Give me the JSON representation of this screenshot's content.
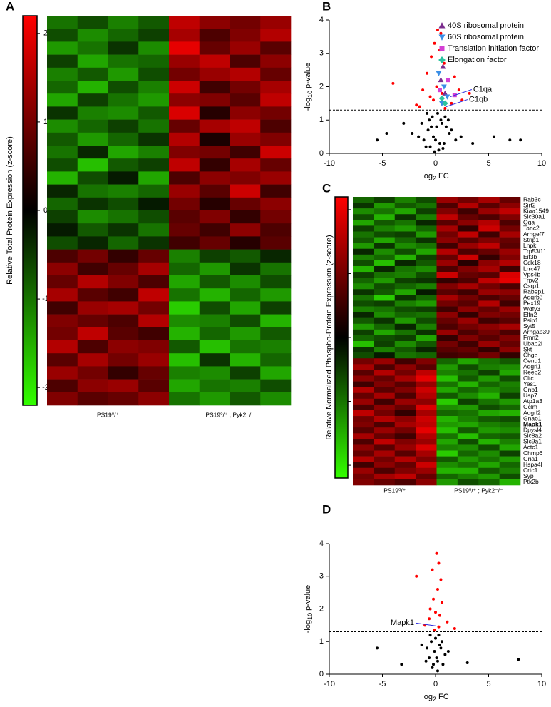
{
  "chart_data": [
    {
      "type": "heatmap",
      "panel": "A",
      "colorbar_label": "Relative Total Protein Expression (z-score)",
      "clim": [
        -2.2,
        2.2
      ],
      "cticks": [
        2,
        1,
        0,
        -1,
        -2
      ],
      "groups": [
        "PS19⁰/⁺",
        "PS19⁰/⁺ ; Pyk2⁻/⁻"
      ],
      "values": [
        [
          -0.9,
          -0.6,
          -1.0,
          -0.7,
          1.5,
          1.1,
          0.9,
          1.2
        ],
        [
          -0.6,
          -1.1,
          -0.8,
          -0.5,
          1.3,
          0.6,
          1.0,
          1.4
        ],
        [
          -1.2,
          -0.9,
          -0.4,
          -1.1,
          1.8,
          0.8,
          1.2,
          0.7
        ],
        [
          -0.5,
          -1.3,
          -0.9,
          -0.8,
          1.2,
          1.5,
          0.6,
          1.1
        ],
        [
          -1.0,
          -0.7,
          -1.2,
          -0.6,
          0.9,
          1.2,
          1.4,
          0.8
        ],
        [
          -0.8,
          -1.4,
          -0.6,
          -1.0,
          1.6,
          0.5,
          0.9,
          1.3
        ],
        [
          -1.3,
          -0.5,
          -0.9,
          -1.2,
          1.1,
          1.0,
          0.7,
          1.5
        ],
        [
          -0.4,
          -1.0,
          -1.1,
          -0.7,
          1.7,
          0.3,
          1.1,
          0.9
        ],
        [
          -1.1,
          -0.8,
          -0.5,
          -0.9,
          0.8,
          1.3,
          1.5,
          0.6
        ],
        [
          -0.7,
          -1.2,
          -0.8,
          -0.4,
          1.4,
          0.2,
          1.2,
          1.0
        ],
        [
          -0.9,
          -0.3,
          -1.3,
          -1.0,
          1.0,
          0.9,
          0.5,
          1.6
        ],
        [
          -0.6,
          -1.5,
          -0.7,
          -0.5,
          1.5,
          0.4,
          1.3,
          0.8
        ],
        [
          -1.4,
          -0.6,
          -0.2,
          -1.3,
          0.6,
          1.1,
          1.0,
          1.2
        ],
        [
          -0.3,
          -0.9,
          -1.0,
          -0.8,
          1.2,
          0.7,
          1.6,
          0.5
        ],
        [
          -0.8,
          -0.4,
          -0.6,
          -0.2,
          0.9,
          0.3,
          0.8,
          1.1
        ],
        [
          -0.5,
          -1.1,
          -0.9,
          -0.6,
          0.7,
          1.0,
          0.4,
          0.9
        ],
        [
          -0.2,
          -0.7,
          -0.4,
          -0.9,
          0.8,
          0.5,
          1.1,
          0.6
        ],
        [
          -0.6,
          -0.3,
          -0.8,
          -0.4,
          0.5,
          0.8,
          0.3,
          0.7
        ],
        [
          0.6,
          0.9,
          0.4,
          0.8,
          -1.0,
          -0.5,
          -0.7,
          -0.3
        ],
        [
          1.1,
          0.5,
          0.8,
          1.3,
          -0.8,
          -1.2,
          -0.4,
          -0.9
        ],
        [
          0.8,
          1.4,
          1.0,
          0.6,
          -1.3,
          -0.7,
          -1.1,
          -0.6
        ],
        [
          1.3,
          0.7,
          0.5,
          1.5,
          -0.9,
          -1.4,
          -0.8,
          -1.2
        ],
        [
          0.5,
          1.2,
          1.3,
          0.9,
          -1.6,
          -0.6,
          -1.3,
          -0.5
        ],
        [
          1.0,
          0.8,
          0.6,
          1.4,
          -1.1,
          -1.0,
          -0.6,
          -1.4
        ],
        [
          0.9,
          1.5,
          0.7,
          0.5,
          -1.4,
          -0.8,
          -1.2,
          -0.7
        ],
        [
          1.4,
          0.6,
          1.1,
          1.0,
          -0.7,
          -1.5,
          -0.9,
          -1.0
        ],
        [
          0.7,
          1.3,
          0.9,
          1.2,
          -1.5,
          -0.4,
          -1.4,
          -0.8
        ],
        [
          1.2,
          0.9,
          0.4,
          0.8,
          -1.0,
          -1.1,
          -0.5,
          -1.3
        ],
        [
          0.6,
          1.1,
          1.2,
          0.7,
          -1.3,
          -0.9,
          -1.0,
          -0.6
        ],
        [
          1.0,
          0.7,
          0.8,
          1.1,
          -0.9,
          -1.2,
          -0.7,
          -1.1
        ]
      ]
    },
    {
      "type": "volcano",
      "panel": "B",
      "xlim": [
        -10,
        10
      ],
      "xticks": [
        -10,
        -5,
        0,
        5,
        10
      ],
      "ylim": [
        0,
        4
      ],
      "yticks": [
        0,
        1,
        2,
        3,
        4
      ],
      "ylabel": {
        "pre": "-log",
        "sub": "10",
        "post": " p-value"
      },
      "xlabel": {
        "pre": "log",
        "sub": "2",
        "post": " FC"
      },
      "hline": 1.3,
      "legend": "upper right",
      "series": [
        {
          "color": "#000000",
          "marker": "circle",
          "x": [
            -0.5,
            0.3,
            -0.2,
            0.8,
            -1.1,
            1.3,
            0.1,
            -0.7,
            0.5,
            -1.6,
            1.9,
            -0.3,
            0.6,
            -0.9,
            0.2,
            1.0,
            -1.3,
            0.4,
            -0.1,
            0.9,
            -0.6,
            1.5,
            -2.2,
            2.4,
            0.0,
            -0.4,
            0.7,
            -0.8,
            1.2,
            -5.5,
            -4.6,
            5.5,
            7.0,
            8.0,
            -3.0,
            3.5
          ],
          "y": [
            0.2,
            0.1,
            0.5,
            0.3,
            0.4,
            0.6,
            0.8,
            0.7,
            1.0,
            0.5,
            0.4,
            1.1,
            0.9,
            0.2,
            1.2,
            0.8,
            0.9,
            0.3,
            0.05,
            1.1,
            1.0,
            0.7,
            0.6,
            0.5,
            0.4,
            0.8,
            0.15,
            1.2,
            1.0,
            0.4,
            0.6,
            0.5,
            0.4,
            0.4,
            0.9,
            0.3
          ]
        },
        {
          "color": "#ff0000",
          "marker": "circle",
          "x": [
            0.2,
            0.5,
            -0.1,
            0.4,
            -0.4,
            0.8,
            -4.0,
            -0.8,
            1.2,
            1.8,
            -1.2,
            0.1,
            2.5,
            -0.5,
            1.5,
            -1.8,
            0.6,
            -0.2,
            2.2,
            -1.5,
            0.9,
            3.2
          ],
          "y": [
            3.7,
            3.6,
            3.3,
            3.1,
            2.9,
            2.7,
            2.1,
            2.4,
            2.2,
            2.3,
            1.9,
            2.0,
            1.6,
            1.7,
            1.5,
            1.45,
            1.8,
            1.6,
            1.9,
            1.4,
            1.35,
            1.8
          ]
        },
        {
          "name": "40S ribosomal protein",
          "color": "#7b2d8e",
          "marker": "triangle-up",
          "x": [
            0.7,
            0.5,
            0.9
          ],
          "y": [
            2.6,
            2.2,
            1.8
          ]
        },
        {
          "name": "60S ribosomal protein",
          "color": "#3a8ee6",
          "marker": "triangle-down",
          "x": [
            0.3,
            0.8,
            1.1,
            0.6
          ],
          "y": [
            2.4,
            2.0,
            1.7,
            1.5
          ]
        },
        {
          "name": "Translation initiation factor",
          "color": "#d43fd4",
          "marker": "square",
          "x": [
            1.2,
            1.8,
            0.4
          ],
          "y": [
            2.2,
            1.75,
            1.9
          ]
        },
        {
          "name": "Elongation factor",
          "color": "#2bc4a0",
          "marker": "diamond",
          "x": [
            0.6,
            0.9
          ],
          "y": [
            1.65,
            1.5
          ]
        }
      ],
      "annotations": [
        {
          "text": "C1qa",
          "x": 1.4,
          "y": 1.7,
          "color": "#2a2ae0"
        },
        {
          "text": "C1qb",
          "x": 1.0,
          "y": 1.4,
          "color": "#2a2ae0"
        }
      ]
    },
    {
      "type": "heatmap",
      "panel": "C",
      "colorbar_label": "Relative Normalized Phospho-Protein Expression (z-score)",
      "clim": [
        -2.2,
        2.2
      ],
      "cticks": [
        2,
        1,
        0,
        -1,
        -2
      ],
      "groups": [
        "PS19⁰/⁺",
        "PS19⁰/⁺ ; Pyk2⁻/⁻"
      ],
      "bold_row": 39,
      "categories": [
        "Rab3c",
        "Sirt2",
        "Kiaa1549",
        "Slc30a1",
        "Oga",
        "Tanc2",
        "Arhgef7",
        "Strip1",
        "Lnpk",
        "Trp53i11",
        "Eif3b",
        "Cdk18",
        "Lrrc47",
        "Vps4b",
        "Trpv2",
        "Csrp1",
        "Rabep1",
        "Adgrb3",
        "Pex19",
        "Wdfy3",
        "Elfn2",
        "Psip1",
        "Syt5",
        "Arhgap39",
        "Fmn2",
        "Ubap2l",
        "Skt",
        "Chgb",
        "Cend1",
        "Adgrl1",
        "Reep2",
        "Cltc",
        "Yes1",
        "Gnb1",
        "Usp7",
        "Atp1a3",
        "Gclm",
        "Adgrl2",
        "Gnao1",
        "Mapk1",
        "Dpysl4",
        "Slc8a2",
        "Slc9a1",
        "Actc1",
        "Chmp6",
        "Gria1",
        "Hspa4l",
        "Crtc1",
        "Syp",
        "Ptk2b"
      ],
      "values": [
        [
          -0.8,
          -0.5,
          -1.0,
          -0.6,
          1.2,
          0.9,
          1.3,
          0.8
        ],
        [
          -0.4,
          -1.2,
          -0.7,
          -0.9,
          0.6,
          1.4,
          0.7,
          1.1
        ],
        [
          -1.1,
          -0.9,
          -1.3,
          -0.5,
          1.0,
          0.5,
          1.2,
          1.5
        ],
        [
          -0.6,
          -1.4,
          -0.4,
          -1.0,
          1.5,
          0.8,
          0.6,
          1.0
        ],
        [
          -1.3,
          -0.7,
          -0.9,
          -0.3,
          0.7,
          1.1,
          1.4,
          0.6
        ],
        [
          -0.5,
          -1.0,
          -1.2,
          -0.8,
          1.3,
          0.4,
          1.6,
          0.9
        ],
        [
          -0.9,
          -0.6,
          -0.5,
          -1.2,
          0.9,
          1.5,
          0.5,
          1.3
        ],
        [
          -0.7,
          -1.3,
          -0.8,
          -0.4,
          1.1,
          0.7,
          1.0,
          0.8
        ],
        [
          -1.2,
          -0.4,
          -1.1,
          -0.9,
          0.5,
          1.2,
          1.5,
          0.7
        ],
        [
          -0.3,
          -1.1,
          -0.6,
          -1.3,
          1.4,
          0.6,
          0.8,
          1.2
        ],
        [
          -1.0,
          -0.8,
          -1.4,
          -0.5,
          0.8,
          1.6,
          0.4,
          1.0
        ],
        [
          -0.6,
          -1.5,
          -0.3,
          -0.7,
          1.2,
          0.3,
          1.1,
          1.4
        ],
        [
          -1.4,
          -0.3,
          -0.9,
          -1.1,
          0.6,
          1.0,
          1.3,
          0.5
        ],
        [
          -0.5,
          -0.9,
          -1.0,
          -0.6,
          1.6,
          0.8,
          0.7,
          1.7
        ],
        [
          -0.8,
          -1.2,
          -0.5,
          -0.4,
          0.4,
          0.6,
          1.5,
          1.8
        ],
        [
          -1.1,
          -0.6,
          -0.8,
          -1.0,
          1.0,
          1.3,
          0.9,
          0.6
        ],
        [
          -0.4,
          -0.7,
          -1.3,
          -0.2,
          0.7,
          0.5,
          1.2,
          1.1
        ],
        [
          -0.9,
          -1.6,
          -0.4,
          -0.8,
          1.3,
          0.9,
          0.6,
          0.8
        ],
        [
          -0.6,
          -0.5,
          -1.0,
          -1.2,
          0.9,
          0.7,
          1.4,
          0.5
        ],
        [
          -1.0,
          -0.9,
          -0.6,
          -0.5,
          0.5,
          1.1,
          0.8,
          1.2
        ],
        [
          -0.3,
          -1.1,
          -0.8,
          -0.9,
          1.1,
          0.4,
          1.0,
          0.9
        ],
        [
          -0.7,
          -0.4,
          -1.2,
          -0.6,
          0.8,
          1.2,
          0.5,
          0.7
        ],
        [
          -1.2,
          -0.8,
          -0.3,
          -1.0,
          0.6,
          0.9,
          1.1,
          1.3
        ],
        [
          -0.5,
          -1.3,
          -0.9,
          -0.4,
          1.2,
          0.6,
          0.9,
          0.6
        ],
        [
          -0.8,
          -0.6,
          -0.5,
          -1.3,
          0.4,
          1.0,
          0.7,
          1.0
        ],
        [
          -1.5,
          -0.5,
          -1.1,
          -0.7,
          0.9,
          0.5,
          1.2,
          0.8
        ],
        [
          -0.4,
          -1.0,
          -0.7,
          -0.3,
          0.7,
          0.8,
          0.4,
          1.1
        ],
        [
          -0.6,
          -0.2,
          -0.9,
          -0.8,
          0.5,
          0.6,
          0.9,
          0.4
        ],
        [
          0.9,
          1.2,
          0.5,
          1.0,
          -0.8,
          -1.3,
          -0.9,
          -0.7
        ],
        [
          1.3,
          0.6,
          1.1,
          0.7,
          -1.2,
          -0.6,
          -1.0,
          -1.1
        ],
        [
          0.7,
          1.4,
          0.9,
          1.5,
          -1.0,
          -0.9,
          -0.5,
          -1.3
        ],
        [
          1.1,
          0.8,
          1.3,
          1.8,
          -1.5,
          -0.7,
          -1.2,
          -0.6
        ],
        [
          0.5,
          1.0,
          0.7,
          1.2,
          -0.9,
          -1.4,
          -0.8,
          -1.0
        ],
        [
          1.4,
          0.7,
          1.0,
          1.6,
          -1.3,
          -0.8,
          -1.1,
          -0.9
        ],
        [
          0.8,
          1.3,
          0.6,
          1.4,
          -0.7,
          -1.1,
          -1.4,
          -0.5
        ],
        [
          1.2,
          0.5,
          1.2,
          1.1,
          -1.6,
          -0.5,
          -0.9,
          -1.2
        ],
        [
          0.6,
          1.1,
          0.8,
          1.7,
          -1.1,
          -1.2,
          -0.6,
          -0.8
        ],
        [
          1.5,
          0.9,
          0.4,
          1.3,
          -0.8,
          -0.9,
          -1.3,
          -1.4
        ],
        [
          0.9,
          1.4,
          1.1,
          1.6,
          -1.4,
          -1.0,
          -0.7,
          -0.6
        ],
        [
          1.0,
          0.6,
          1.3,
          1.5,
          -1.2,
          -1.3,
          -1.0,
          -0.9
        ],
        [
          0.7,
          1.2,
          0.9,
          1.8,
          -1.5,
          -0.7,
          -1.2,
          -1.1
        ],
        [
          1.3,
          0.8,
          0.5,
          1.4,
          -0.9,
          -1.5,
          -0.8,
          -0.7
        ],
        [
          0.6,
          1.5,
          1.0,
          1.2,
          -1.3,
          -0.6,
          -1.4,
          -1.0
        ],
        [
          1.1,
          0.7,
          1.2,
          1.7,
          -1.0,
          -1.1,
          -0.6,
          -1.3
        ],
        [
          0.8,
          1.3,
          0.7,
          1.3,
          -1.6,
          -0.8,
          -1.1,
          -0.5
        ],
        [
          1.4,
          0.9,
          1.4,
          1.0,
          -0.7,
          -1.2,
          -0.9,
          -1.2
        ],
        [
          0.5,
          1.1,
          0.8,
          1.6,
          -1.1,
          -0.9,
          -1.3,
          -0.8
        ],
        [
          1.2,
          0.6,
          1.0,
          1.2,
          -1.4,
          -1.4,
          -0.7,
          -1.0
        ],
        [
          0.9,
          1.3,
          1.5,
          0.8,
          -0.8,
          -1.0,
          -1.2,
          -0.6
        ],
        [
          1.0,
          0.8,
          0.6,
          1.1,
          -1.2,
          -0.6,
          -0.8,
          -1.4
        ]
      ]
    },
    {
      "type": "volcano",
      "panel": "D",
      "xlim": [
        -10,
        10
      ],
      "xticks": [
        -10,
        -5,
        0,
        5,
        10
      ],
      "ylim": [
        0,
        4
      ],
      "yticks": [
        0,
        1,
        2,
        3,
        4
      ],
      "ylabel": {
        "pre": "-log",
        "sub": "10",
        "post": " p-value"
      },
      "xlabel": {
        "pre": "log",
        "sub": "2",
        "post": " FC"
      },
      "hline": 1.3,
      "series": [
        {
          "color": "#000000",
          "marker": "circle",
          "x": [
            -0.3,
            0.2,
            -0.1,
            0.4,
            -0.6,
            0.7,
            0.0,
            -0.4,
            0.3,
            -0.8,
            0.9,
            -0.2,
            0.5,
            0.1,
            -0.5,
            0.6,
            -0.9,
            1.2,
            -1.3,
            0.2,
            -5.5,
            7.8,
            -3.2,
            3.0
          ],
          "y": [
            0.2,
            0.4,
            0.7,
            0.9,
            0.5,
            0.3,
            1.1,
            1.0,
            1.2,
            0.8,
            0.6,
            0.3,
            0.8,
            0.5,
            1.2,
            1.0,
            0.4,
            0.7,
            0.9,
            0.1,
            0.8,
            0.45,
            0.3,
            0.35
          ]
        },
        {
          "color": "#ff0000",
          "marker": "circle",
          "x": [
            0.1,
            0.3,
            -0.3,
            -1.8,
            0.5,
            0.2,
            -0.2,
            0.6,
            -0.5,
            0.0,
            0.4,
            -0.6,
            1.1,
            -1.0,
            0.3,
            1.8,
            -0.1
          ],
          "y": [
            3.7,
            3.4,
            3.2,
            3.0,
            2.9,
            2.6,
            2.3,
            2.2,
            2.0,
            1.9,
            1.8,
            1.7,
            1.6,
            1.5,
            1.45,
            1.4,
            1.35
          ]
        }
      ],
      "annotations": [
        {
          "text": "Mapk1",
          "x": 0.0,
          "y": 1.48,
          "color": "#2a2ae0",
          "side": "left"
        }
      ]
    }
  ]
}
